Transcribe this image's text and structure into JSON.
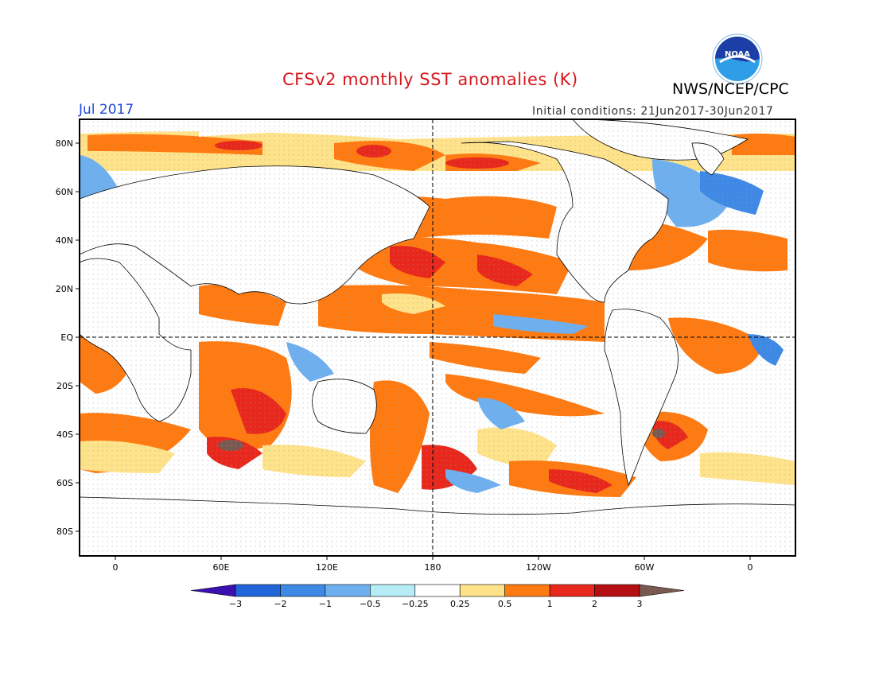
{
  "title": "CFSv2 monthly SST anomalies (K)",
  "organization": "NWS/NCEP/CPC",
  "logo_text": "NOAA",
  "month": "Jul 2017",
  "initial_conditions": "Initial conditions: 21Jun2017-30Jun2017",
  "map": {
    "projection": "equirectangular",
    "longitude_range": [
      -20,
      380
    ],
    "latitude_range": [
      -90,
      90
    ],
    "lat_labels": [
      "80N",
      "60N",
      "40N",
      "20N",
      "EQ",
      "20S",
      "40S",
      "60S",
      "80S"
    ],
    "lon_labels": [
      "0",
      "60E",
      "120E",
      "180",
      "120W",
      "60W",
      "0"
    ],
    "reference_lines": [
      "equator",
      "180"
    ]
  },
  "colorbar": {
    "labels": [
      "-3",
      "-2",
      "-1",
      "-0.5",
      "-0.25",
      "0.25",
      "0.5",
      "1",
      "2",
      "3"
    ],
    "colors": [
      "#3a10b0",
      "#1f64d8",
      "#3f89e6",
      "#6eb0ef",
      "#b6ecf5",
      "#ffffff",
      "#ffe38a",
      "#ff7a10",
      "#e8281c",
      "#b50e12",
      "#7a5a50"
    ]
  }
}
